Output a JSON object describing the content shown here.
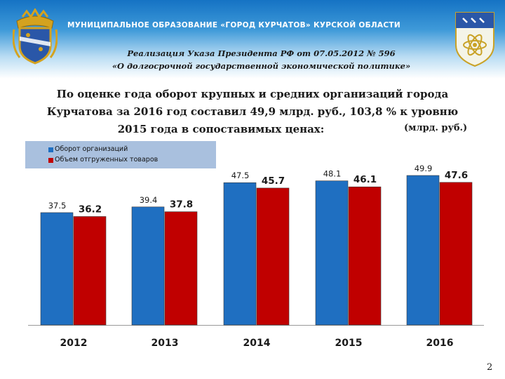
{
  "header": {
    "org_title": "МУНИЦИПАЛЬНОЕ  ОБРАЗОВАНИЕ  «ГОРОД КУРЧАТОВ»  КУРСКОЙ  ОБЛАСТИ",
    "decree_line1": "Реализация Указа Президента РФ от 07.05.2012 № 596",
    "decree_line2": "«О долгосрочной государственной экономической политике»"
  },
  "headline": {
    "line1": "По оценке года оборот крупных и средних организаций города",
    "line2": "Курчатова за  2016 год составил 49,9 млрд. руб., 103,8 % к уровню",
    "line3": "2015 года в сопоставимых ценах:"
  },
  "unit_label": "(млрд. руб.)",
  "page_number": "2",
  "colors": {
    "series1": "#1f6fc1",
    "series2": "#c00000",
    "legend_bg": "#a9c0de",
    "header_blue": "#1573c4"
  },
  "chart_data": {
    "type": "bar",
    "categories": [
      "2012",
      "2013",
      "2014",
      "2015",
      "2016"
    ],
    "series": [
      {
        "name": "Оборот организаций",
        "values": [
          37.5,
          39.4,
          47.5,
          48.1,
          49.9
        ],
        "labels": [
          "37.5",
          "39.4",
          "47.5",
          "48.1",
          "49.9"
        ]
      },
      {
        "name": "Объем отгруженных товаров",
        "values": [
          36.2,
          37.8,
          45.7,
          46.1,
          47.6
        ],
        "labels": [
          "36.2",
          "37.8",
          "45.7",
          "46.1",
          "47.6"
        ]
      }
    ],
    "ylim": [
      0,
      60
    ],
    "grid": false,
    "legend_position": "top-left"
  }
}
